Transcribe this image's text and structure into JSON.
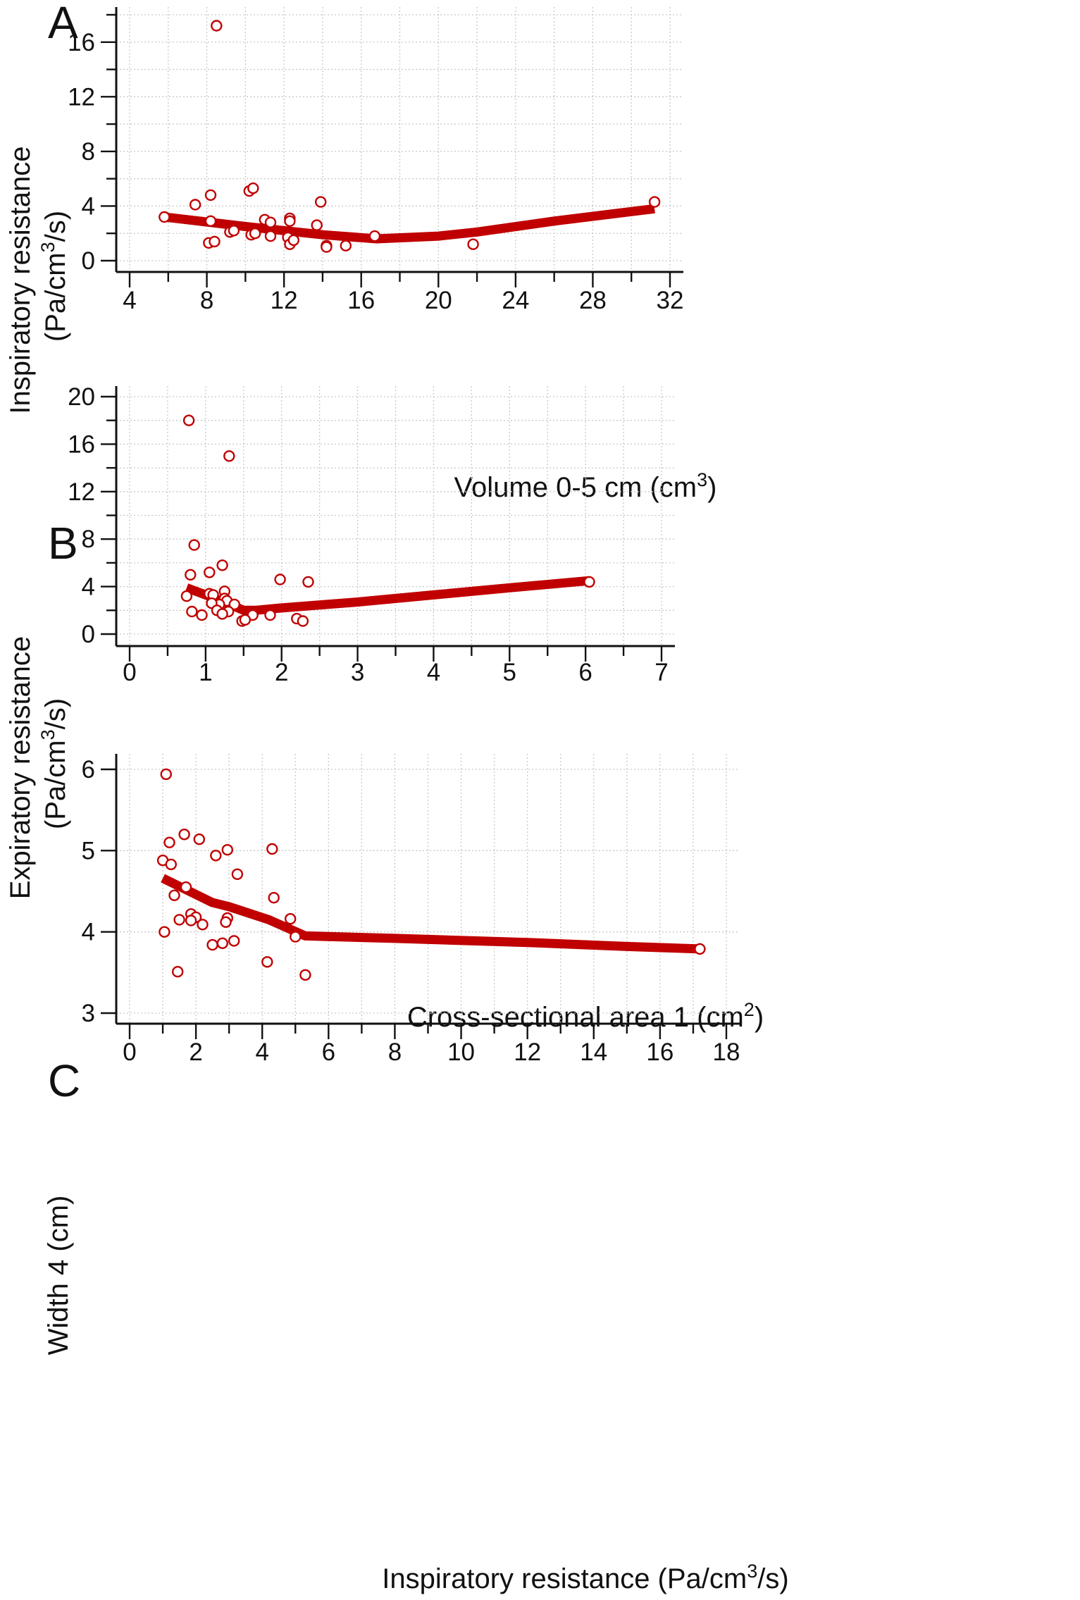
{
  "chart_data": [
    {
      "type": "scatter",
      "panel_label": "A",
      "xlabel": "Volume 0-5 cm (cm",
      "xlabel_sup": "3",
      "xlabel_tail": ")",
      "ylabel_line1": "Inspiratory resistance",
      "ylabel_line2": "(Pa/cm",
      "ylabel_sup": "3",
      "ylabel_tail": "/s)",
      "xlim": [
        4,
        32
      ],
      "ylim": [
        0,
        18
      ],
      "xticks": [
        4,
        8,
        12,
        16,
        20,
        24,
        28,
        32
      ],
      "yticks": [
        0,
        4,
        8,
        12,
        16
      ],
      "xminor": [
        6,
        10,
        14,
        18,
        22,
        26,
        30
      ],
      "yminor": [
        2,
        6,
        10,
        14,
        18
      ],
      "grid": true,
      "points": [
        [
          5.8,
          3.2
        ],
        [
          7.4,
          4.1
        ],
        [
          8.2,
          4.8
        ],
        [
          8.5,
          17.2
        ],
        [
          8.2,
          2.9
        ],
        [
          8.1,
          1.3
        ],
        [
          8.4,
          1.4
        ],
        [
          9.2,
          2.1
        ],
        [
          9.4,
          2.2
        ],
        [
          10.2,
          5.1
        ],
        [
          10.4,
          5.3
        ],
        [
          10.3,
          1.9
        ],
        [
          10.5,
          2.0
        ],
        [
          11.0,
          3.0
        ],
        [
          11.3,
          2.8
        ],
        [
          11.3,
          1.8
        ],
        [
          12.3,
          3.1
        ],
        [
          12.3,
          2.9
        ],
        [
          12.2,
          1.7
        ],
        [
          12.3,
          1.2
        ],
        [
          12.5,
          1.5
        ],
        [
          13.7,
          2.6
        ],
        [
          13.9,
          4.3
        ],
        [
          14.2,
          1.1
        ],
        [
          14.2,
          1.0
        ],
        [
          15.2,
          1.1
        ],
        [
          16.7,
          1.8
        ],
        [
          21.8,
          1.2
        ],
        [
          31.2,
          4.3
        ]
      ],
      "fit_line": [
        [
          5.8,
          3.2
        ],
        [
          10.0,
          2.5
        ],
        [
          14.0,
          1.9
        ],
        [
          16.8,
          1.6
        ],
        [
          20.0,
          1.8
        ],
        [
          22.0,
          2.1
        ],
        [
          26.0,
          2.9
        ],
        [
          31.2,
          3.8
        ]
      ],
      "marker_color": "#c00000",
      "line_color": "#c00000"
    },
    {
      "type": "scatter",
      "panel_label": "B",
      "xlabel": "Cross-sectional area 1 (cm",
      "xlabel_sup": "2",
      "xlabel_tail": ")",
      "ylabel_line1": "Expiratory resistance",
      "ylabel_line2": "(Pa/cm",
      "ylabel_sup": "3",
      "ylabel_tail": "/s)",
      "xlim": [
        0,
        7
      ],
      "ylim": [
        0,
        20
      ],
      "xticks": [
        0,
        1,
        2,
        3,
        4,
        5,
        6,
        7
      ],
      "yticks": [
        0,
        4,
        8,
        12,
        16,
        20
      ],
      "xminor": [
        0.5,
        1.5,
        2.5,
        3.5,
        4.5,
        5.5,
        6.5
      ],
      "yminor": [
        2,
        6,
        10,
        14,
        18
      ],
      "grid": true,
      "points": [
        [
          0.78,
          18.0
        ],
        [
          1.31,
          15.0
        ],
        [
          0.85,
          7.5
        ],
        [
          1.22,
          5.8
        ],
        [
          1.05,
          5.2
        ],
        [
          0.8,
          5.0
        ],
        [
          1.98,
          4.6
        ],
        [
          2.35,
          4.4
        ],
        [
          6.05,
          4.4
        ],
        [
          0.75,
          3.2
        ],
        [
          1.05,
          3.4
        ],
        [
          1.1,
          3.3
        ],
        [
          1.25,
          3.6
        ],
        [
          1.25,
          3.0
        ],
        [
          1.28,
          2.8
        ],
        [
          1.18,
          2.5
        ],
        [
          1.08,
          2.6
        ],
        [
          1.38,
          2.5
        ],
        [
          1.15,
          2.0
        ],
        [
          1.3,
          1.9
        ],
        [
          0.82,
          1.9
        ],
        [
          0.95,
          1.6
        ],
        [
          1.22,
          1.7
        ],
        [
          1.62,
          1.6
        ],
        [
          1.85,
          1.6
        ],
        [
          1.48,
          1.1
        ],
        [
          1.52,
          1.2
        ],
        [
          2.2,
          1.3
        ],
        [
          2.28,
          1.1
        ]
      ],
      "fit_line": [
        [
          0.75,
          3.9
        ],
        [
          1.0,
          3.3
        ],
        [
          1.25,
          2.7
        ],
        [
          1.5,
          2.0
        ],
        [
          1.65,
          2.0
        ],
        [
          2.0,
          2.2
        ],
        [
          3.0,
          2.7
        ],
        [
          4.0,
          3.3
        ],
        [
          5.0,
          3.9
        ],
        [
          6.05,
          4.5
        ]
      ],
      "marker_color": "#c00000",
      "line_color": "#c00000"
    },
    {
      "type": "scatter",
      "panel_label": "C",
      "xlabel": "Inspiratory resistance (Pa/cm",
      "xlabel_sup": "3",
      "xlabel_tail": "/s)",
      "ylabel_line1": "Width 4 (cm)",
      "xlim": [
        0,
        18
      ],
      "ylim": [
        3,
        6
      ],
      "xticks": [
        0,
        2,
        4,
        6,
        8,
        10,
        12,
        14,
        16,
        18
      ],
      "yticks": [
        3,
        4,
        5,
        6
      ],
      "xminor": [
        1,
        3,
        5,
        7,
        9,
        11,
        13,
        15,
        17
      ],
      "yminor": [],
      "grid": true,
      "points": [
        [
          1.1,
          5.94
        ],
        [
          1.65,
          5.2
        ],
        [
          2.1,
          5.14
        ],
        [
          1.2,
          5.1
        ],
        [
          2.95,
          5.01
        ],
        [
          4.3,
          5.02
        ],
        [
          1.0,
          4.88
        ],
        [
          1.25,
          4.83
        ],
        [
          2.6,
          4.94
        ],
        [
          3.25,
          4.71
        ],
        [
          1.7,
          4.55
        ],
        [
          1.35,
          4.45
        ],
        [
          4.35,
          4.42
        ],
        [
          1.85,
          4.22
        ],
        [
          2.0,
          4.18
        ],
        [
          1.85,
          4.14
        ],
        [
          2.95,
          4.17
        ],
        [
          2.9,
          4.12
        ],
        [
          4.85,
          4.16
        ],
        [
          1.5,
          4.15
        ],
        [
          2.2,
          4.09
        ],
        [
          1.05,
          4.0
        ],
        [
          5.0,
          3.94
        ],
        [
          2.5,
          3.84
        ],
        [
          2.8,
          3.86
        ],
        [
          3.15,
          3.89
        ],
        [
          4.15,
          3.63
        ],
        [
          1.45,
          3.51
        ],
        [
          5.3,
          3.47
        ],
        [
          17.2,
          3.79
        ]
      ],
      "fit_line": [
        [
          1.0,
          4.66
        ],
        [
          1.5,
          4.56
        ],
        [
          2.5,
          4.36
        ],
        [
          3.0,
          4.31
        ],
        [
          4.2,
          4.15
        ],
        [
          5.3,
          3.95
        ],
        [
          8.0,
          3.92
        ],
        [
          12.0,
          3.87
        ],
        [
          15.0,
          3.82
        ],
        [
          17.2,
          3.79
        ]
      ],
      "marker_color": "#c00000",
      "line_color": "#c00000"
    }
  ]
}
